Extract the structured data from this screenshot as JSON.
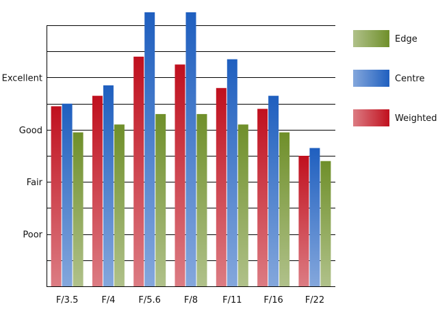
{
  "chart_data": {
    "type": "bar",
    "title": "",
    "xlabel": "",
    "ylabel": "",
    "categories": [
      "F/3.5",
      "F/4",
      "F/5.6",
      "F/8",
      "F/11",
      "F/16",
      "F/22"
    ],
    "y_ticks": [
      {
        "value": 2,
        "label": "Poor"
      },
      {
        "value": 4,
        "label": "Fair"
      },
      {
        "value": 6,
        "label": "Good"
      },
      {
        "value": 8,
        "label": "Excellent"
      }
    ],
    "ylim": [
      0,
      10.5
    ],
    "grid": true,
    "legend": "right",
    "series": [
      {
        "name": "Weighted",
        "color": "#c0101e",
        "values": [
          6.9,
          7.3,
          8.8,
          8.5,
          7.6,
          6.8,
          5.0
        ]
      },
      {
        "name": "Centre",
        "color": "#1f5fbf",
        "values": [
          7.0,
          7.7,
          10.5,
          10.5,
          8.7,
          7.3,
          5.3
        ]
      },
      {
        "name": "Edge",
        "color": "#6f8f2a",
        "values": [
          5.9,
          6.2,
          6.6,
          6.6,
          6.2,
          5.9,
          4.8
        ]
      }
    ],
    "legend_order": [
      "Edge",
      "Centre",
      "Weighted"
    ]
  }
}
